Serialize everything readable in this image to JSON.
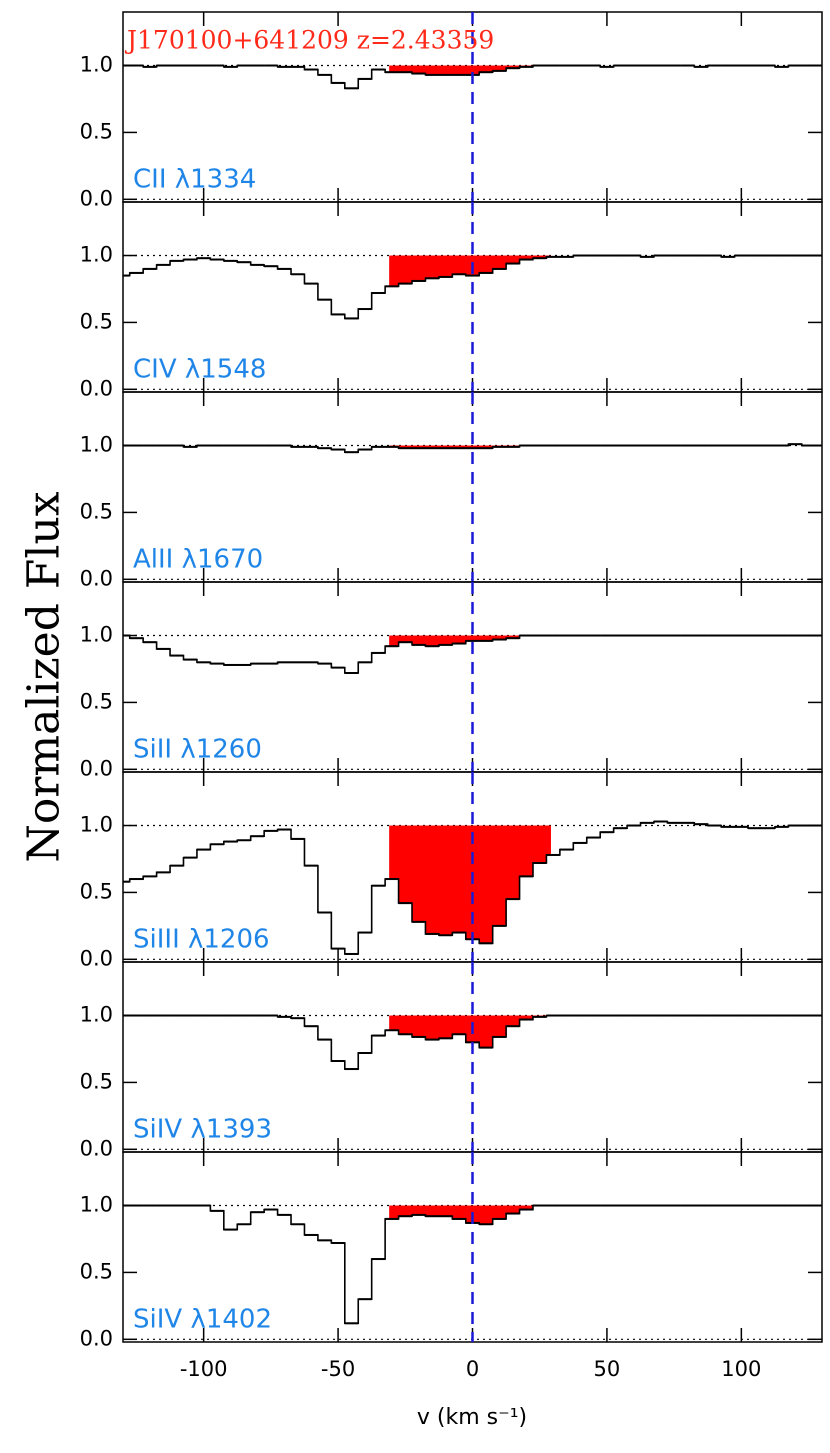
{
  "chart_data": {
    "type": "step",
    "title": "J170100+641209 z=2.43359",
    "title_color": "#ff2a1a",
    "xlabel": "v (km s⁻¹)",
    "ylabel": "Normalized Flux",
    "xlim": [
      -130,
      130
    ],
    "xticks": [
      -100,
      -50,
      0,
      50,
      100
    ],
    "ylim": [
      -0.02,
      1.4
    ],
    "yticks": [
      {
        "value": 0,
        "label": "0.0"
      },
      {
        "value": 0.5,
        "label": "0.5"
      },
      {
        "value": 1,
        "label": "1.0"
      }
    ],
    "reference_levels": [
      0,
      1
    ],
    "absorption_range": [
      -31,
      29
    ],
    "fill_color": "#ff0000",
    "marker_x": 0,
    "marker_color": "#1a1ad6",
    "label_color": "#1f86e8",
    "x": [
      -130,
      -125,
      -120,
      -115,
      -110,
      -105,
      -100,
      -95,
      -90,
      -85,
      -80,
      -75,
      -70,
      -65,
      -60,
      -55,
      -50,
      -45,
      -40,
      -35,
      -30,
      -25,
      -20,
      -15,
      -10,
      -5,
      0,
      5,
      10,
      15,
      20,
      25,
      30,
      35,
      40,
      45,
      50,
      55,
      60,
      65,
      70,
      75,
      80,
      85,
      90,
      95,
      100,
      105,
      110,
      115,
      120,
      125,
      130
    ],
    "series": [
      {
        "name": "CII  λ1334",
        "color": "#000000",
        "values": [
          1.0,
          1.0,
          0.99,
          1.0,
          1.0,
          1.0,
          1.0,
          1.0,
          0.99,
          1.0,
          1.0,
          1.0,
          0.99,
          0.99,
          0.97,
          0.93,
          0.87,
          0.83,
          0.9,
          0.97,
          0.95,
          0.95,
          0.94,
          0.93,
          0.93,
          0.93,
          0.93,
          0.95,
          0.96,
          0.98,
          0.99,
          1.0,
          1.0,
          1.0,
          1.0,
          1.0,
          0.99,
          1.0,
          1.0,
          1.0,
          1.0,
          1.0,
          1.0,
          0.99,
          1.0,
          1.0,
          1.0,
          1.0,
          1.0,
          0.99,
          1.0,
          1.0,
          1.0
        ]
      },
      {
        "name": "CIV  λ1548",
        "color": "#000000",
        "values": [
          0.85,
          0.87,
          0.9,
          0.93,
          0.96,
          0.97,
          0.98,
          0.97,
          0.96,
          0.95,
          0.93,
          0.92,
          0.9,
          0.86,
          0.79,
          0.67,
          0.56,
          0.53,
          0.6,
          0.72,
          0.77,
          0.79,
          0.81,
          0.83,
          0.84,
          0.86,
          0.85,
          0.87,
          0.9,
          0.94,
          0.97,
          0.98,
          0.99,
          0.99,
          1.0,
          1.0,
          1.0,
          1.0,
          1.0,
          0.99,
          1.0,
          1.0,
          1.0,
          1.0,
          1.0,
          0.99,
          1.0,
          1.0,
          1.0,
          1.0,
          1.0,
          1.0,
          1.0
        ]
      },
      {
        "name": "AlII  λ1670",
        "color": "#000000",
        "values": [
          1.0,
          1.0,
          1.0,
          1.0,
          1.0,
          0.99,
          1.0,
          1.0,
          1.0,
          1.0,
          1.0,
          1.0,
          1.0,
          0.99,
          0.99,
          0.98,
          0.97,
          0.95,
          0.97,
          0.99,
          0.99,
          0.98,
          0.98,
          0.98,
          0.98,
          0.98,
          0.98,
          0.98,
          0.99,
          0.99,
          1.0,
          1.0,
          1.0,
          1.0,
          1.0,
          1.0,
          1.0,
          1.0,
          1.0,
          1.0,
          1.0,
          1.0,
          1.0,
          1.0,
          1.0,
          1.0,
          1.0,
          1.0,
          1.0,
          1.0,
          1.01,
          1.0,
          1.0
        ]
      },
      {
        "name": "SiII  λ1260",
        "color": "#000000",
        "values": [
          1.0,
          0.98,
          0.95,
          0.9,
          0.85,
          0.82,
          0.8,
          0.79,
          0.78,
          0.78,
          0.79,
          0.79,
          0.8,
          0.8,
          0.8,
          0.79,
          0.76,
          0.72,
          0.8,
          0.87,
          0.92,
          0.95,
          0.93,
          0.92,
          0.93,
          0.94,
          0.96,
          0.96,
          0.97,
          0.98,
          1.0,
          1.0,
          1.0,
          1.0,
          1.0,
          1.0,
          1.0,
          1.0,
          1.0,
          1.0,
          1.0,
          1.0,
          1.0,
          1.0,
          1.0,
          1.0,
          1.0,
          1.0,
          1.0,
          1.0,
          1.0,
          1.0,
          1.0
        ]
      },
      {
        "name": "SiIII  λ1206",
        "color": "#000000",
        "values": [
          0.58,
          0.6,
          0.62,
          0.65,
          0.7,
          0.76,
          0.82,
          0.86,
          0.88,
          0.89,
          0.92,
          0.96,
          0.97,
          0.9,
          0.7,
          0.35,
          0.08,
          0.04,
          0.2,
          0.55,
          0.6,
          0.42,
          0.28,
          0.19,
          0.18,
          0.2,
          0.15,
          0.12,
          0.25,
          0.45,
          0.62,
          0.72,
          0.78,
          0.82,
          0.87,
          0.91,
          0.95,
          0.98,
          1.0,
          1.02,
          1.03,
          1.02,
          1.02,
          1.01,
          1.0,
          0.99,
          0.99,
          0.98,
          0.98,
          0.99,
          1.0,
          1.0,
          1.0
        ]
      },
      {
        "name": "SiIV  λ1393",
        "color": "#000000",
        "values": [
          1.0,
          1.0,
          1.0,
          1.0,
          1.0,
          1.0,
          1.0,
          1.0,
          1.0,
          1.0,
          1.0,
          1.0,
          0.99,
          0.98,
          0.92,
          0.82,
          0.66,
          0.6,
          0.72,
          0.85,
          0.89,
          0.86,
          0.84,
          0.82,
          0.83,
          0.86,
          0.8,
          0.76,
          0.84,
          0.92,
          0.97,
          0.99,
          1.0,
          1.0,
          1.0,
          1.0,
          1.0,
          1.0,
          1.0,
          1.0,
          1.0,
          1.0,
          1.0,
          1.0,
          1.0,
          1.0,
          1.0,
          1.0,
          1.0,
          1.0,
          1.0,
          1.0,
          1.0
        ]
      },
      {
        "name": "SiIV  λ1402",
        "color": "#000000",
        "values": [
          1.0,
          1.0,
          1.0,
          1.0,
          1.0,
          1.0,
          1.0,
          0.96,
          0.82,
          0.86,
          0.95,
          0.97,
          0.93,
          0.86,
          0.78,
          0.74,
          0.72,
          0.12,
          0.3,
          0.6,
          0.9,
          0.92,
          0.93,
          0.92,
          0.92,
          0.9,
          0.87,
          0.86,
          0.9,
          0.94,
          0.97,
          1.0,
          1.0,
          1.0,
          1.0,
          1.0,
          1.0,
          1.0,
          1.0,
          1.0,
          1.0,
          1.0,
          1.0,
          1.0,
          1.0,
          1.0,
          1.0,
          1.0,
          1.0,
          1.0,
          1.0,
          1.0,
          1.0
        ]
      }
    ]
  }
}
